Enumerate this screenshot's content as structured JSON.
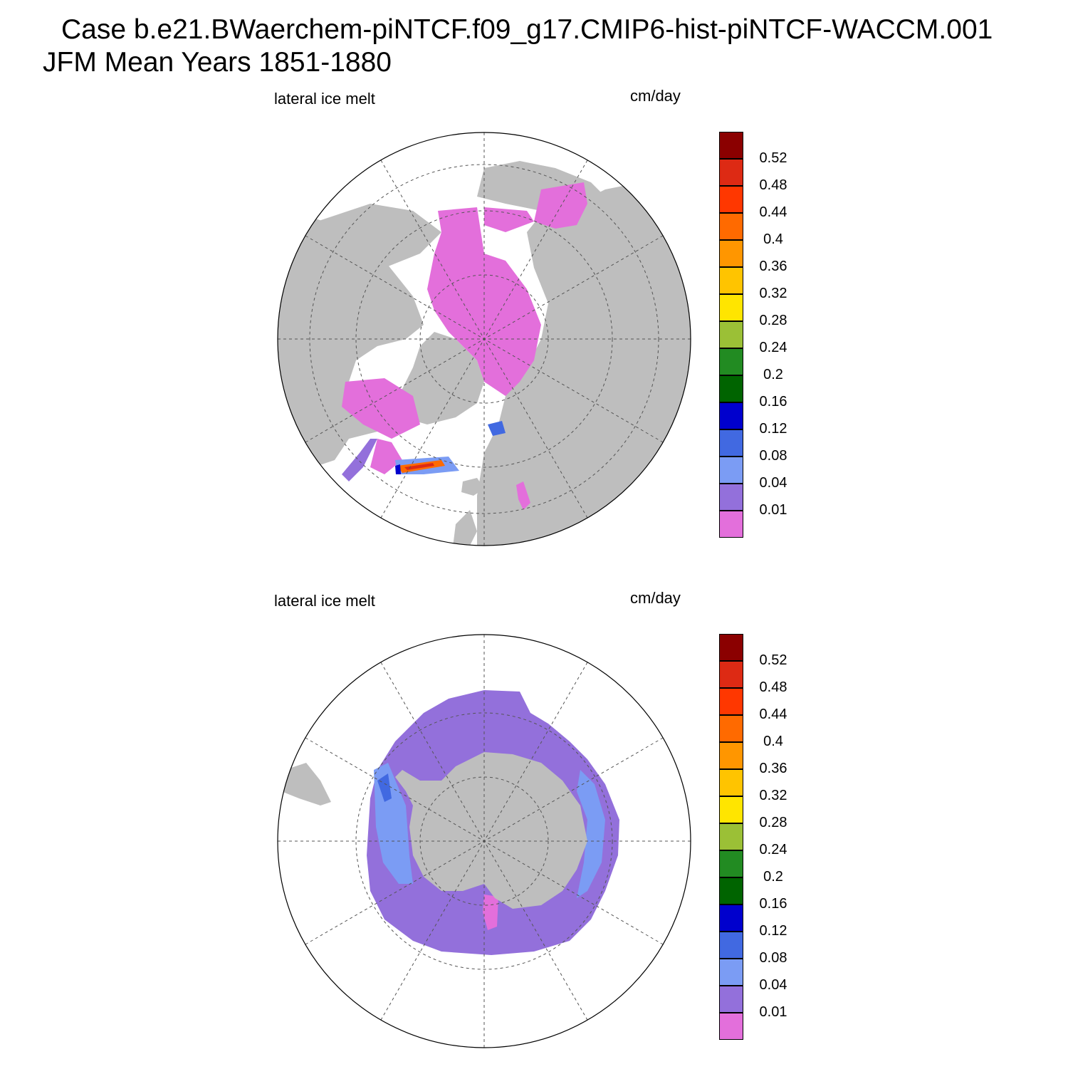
{
  "header": {
    "title_line1": "Case b.e21.BWaerchem-piNTCF.f09_g17.CMIP6-hist-piNTCF-WACCM.001",
    "title_line2": "JFM Mean    Years 1851-1880"
  },
  "panels": [
    {
      "id": "north",
      "hemisphere": "Northern Hemisphere polar stereographic",
      "variable_label": "lateral ice melt",
      "unit_label": "cm/day"
    },
    {
      "id": "south",
      "hemisphere": "Southern Hemisphere polar stereographic",
      "variable_label": "lateral ice melt",
      "unit_label": "cm/day"
    }
  ],
  "colorbar": {
    "levels": [
      "0.52",
      "0.48",
      "0.44",
      "0.4",
      "0.36",
      "0.32",
      "0.28",
      "0.24",
      "0.2",
      "0.16",
      "0.12",
      "0.08",
      "0.04",
      "0.01"
    ],
    "colors": [
      "#8b0000",
      "#dd2a14",
      "#ff3700",
      "#ff6a00",
      "#ff9600",
      "#ffc400",
      "#ffe500",
      "#9bc036",
      "#228b22",
      "#006400",
      "#0000cd",
      "#4169e1",
      "#7b9cf4",
      "#9370db",
      "#e36fdb"
    ]
  },
  "map_colors": {
    "land": "#bebebe",
    "ocean": "#ffffff",
    "grid": "#555555"
  },
  "icons": [
    "gridline-icon",
    "land-mass-icon",
    "sea-ice-field-icon"
  ]
}
